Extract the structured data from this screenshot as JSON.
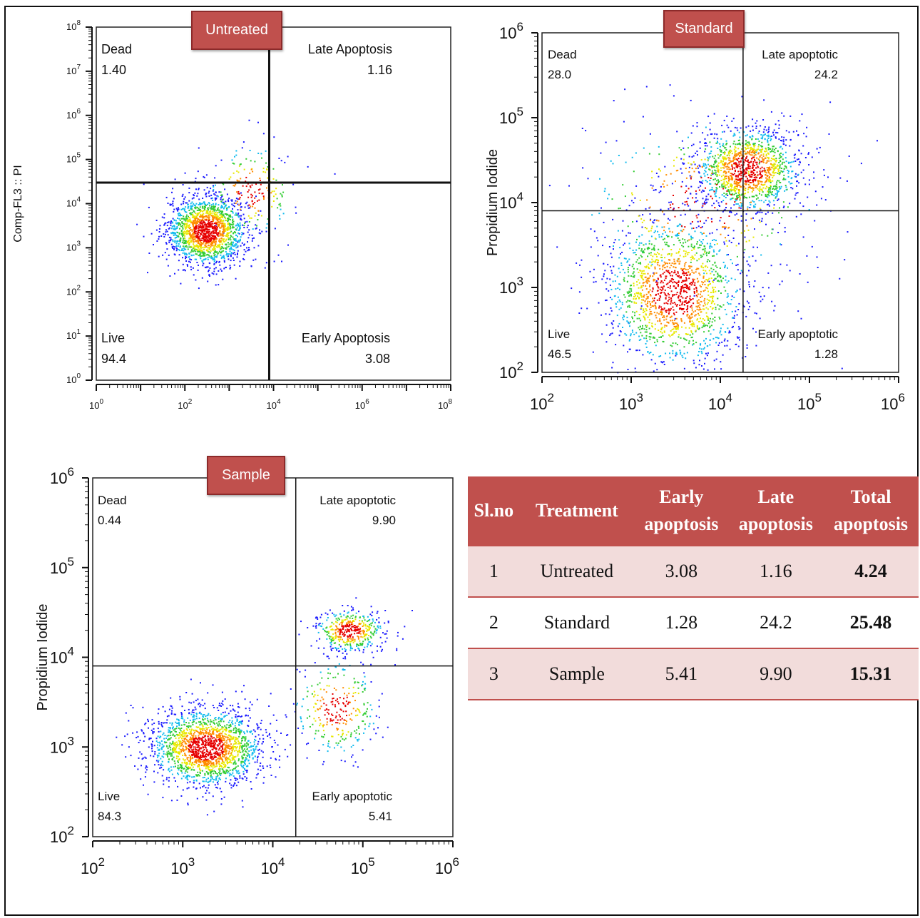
{
  "chart_data": [
    {
      "type": "scatter",
      "title": "Untreated",
      "xlabel": "",
      "ylabel": "Comp-FL3 :: PI",
      "xscale": "log",
      "yscale": "log",
      "xlim": [
        1,
        100000000
      ],
      "ylim": [
        1,
        100000000
      ],
      "x_ticks": [
        "10^0",
        "10^2",
        "10^4",
        "10^6",
        "10^8"
      ],
      "y_ticks": [
        "10^0",
        "10^1",
        "10^2",
        "10^3",
        "10^4",
        "10^5",
        "10^6",
        "10^7",
        "10^8"
      ],
      "gate": {
        "x": 8000,
        "y": 30000
      },
      "quadrants": [
        {
          "name": "Dead",
          "value": "1.40"
        },
        {
          "name": "Late Apoptosis",
          "value": "1.16"
        },
        {
          "name": "Live",
          "value": "94.4"
        },
        {
          "name": "Early Apoptosis",
          "value": "3.08"
        }
      ],
      "populations": [
        {
          "x": 300,
          "y": 2500,
          "spread": [
            0.45,
            0.4
          ],
          "n": 1700
        },
        {
          "x": 3000,
          "y": 20000,
          "spread": [
            0.5,
            0.55
          ],
          "n": 200
        }
      ]
    },
    {
      "type": "scatter",
      "title": "Standard",
      "xlabel": "",
      "ylabel": "Propidium Iodide",
      "xscale": "log",
      "yscale": "log",
      "xlim": [
        100,
        1000000
      ],
      "ylim": [
        100,
        1000000
      ],
      "x_ticks": [
        "10^2",
        "10^3",
        "10^4",
        "10^5",
        "10^6"
      ],
      "y_ticks": [
        "10^2",
        "10^3",
        "10^4",
        "10^5",
        "10^6"
      ],
      "gate": {
        "x": 18000,
        "y": 8000
      },
      "quadrants": [
        {
          "name": "Dead",
          "value": "28.0"
        },
        {
          "name": "Late apoptotic",
          "value": "24.2"
        },
        {
          "name": "Live",
          "value": "46.5"
        },
        {
          "name": "Early apoptotic",
          "value": "1.28"
        }
      ],
      "populations": [
        {
          "x": 20000,
          "y": 25000,
          "spread": [
            0.3,
            0.25
          ],
          "n": 1300
        },
        {
          "x": 3000,
          "y": 900,
          "spread": [
            0.4,
            0.45
          ],
          "n": 1600
        },
        {
          "x": 6000,
          "y": 10000,
          "spread": [
            0.7,
            0.5
          ],
          "n": 350
        }
      ]
    },
    {
      "type": "scatter",
      "title": "Sample",
      "xlabel": "",
      "ylabel": "Propidium Iodide",
      "xscale": "log",
      "yscale": "log",
      "xlim": [
        100,
        1000000
      ],
      "ylim": [
        100,
        1000000
      ],
      "x_ticks": [
        "10^2",
        "10^3",
        "10^4",
        "10^5",
        "10^6"
      ],
      "y_ticks": [
        "10^2",
        "10^3",
        "10^4",
        "10^5",
        "10^6"
      ],
      "gate": {
        "x": 18000,
        "y": 8000
      },
      "quadrants": [
        {
          "name": "Dead",
          "value": "0.44"
        },
        {
          "name": "Late apoptotic",
          "value": "9.90"
        },
        {
          "name": "Live",
          "value": "84.3"
        },
        {
          "name": "Early apoptotic",
          "value": "5.41"
        }
      ],
      "populations": [
        {
          "x": 1800,
          "y": 1000,
          "spread": [
            0.32,
            0.22
          ],
          "n": 1900
        },
        {
          "x": 70000,
          "y": 20000,
          "spread": [
            0.2,
            0.12
          ],
          "n": 450
        },
        {
          "x": 50000,
          "y": 2800,
          "spread": [
            0.25,
            0.28
          ],
          "n": 300
        }
      ]
    }
  ],
  "table": {
    "headers": [
      "Sl.no",
      "Treatment",
      "Early apoptosis",
      "Late apoptosis",
      "Total apoptosis"
    ],
    "rows": [
      [
        "1",
        "Untreated",
        "3.08",
        "1.16",
        "4.24"
      ],
      [
        "2",
        "Standard",
        "1.28",
        "24.2",
        "25.48"
      ],
      [
        "3",
        "Sample",
        "5.41",
        "9.90",
        "15.31"
      ]
    ]
  },
  "colors": {
    "banner": "#c0504d",
    "table_header": "#c0504d",
    "row_tint": "#f2dcdb"
  }
}
